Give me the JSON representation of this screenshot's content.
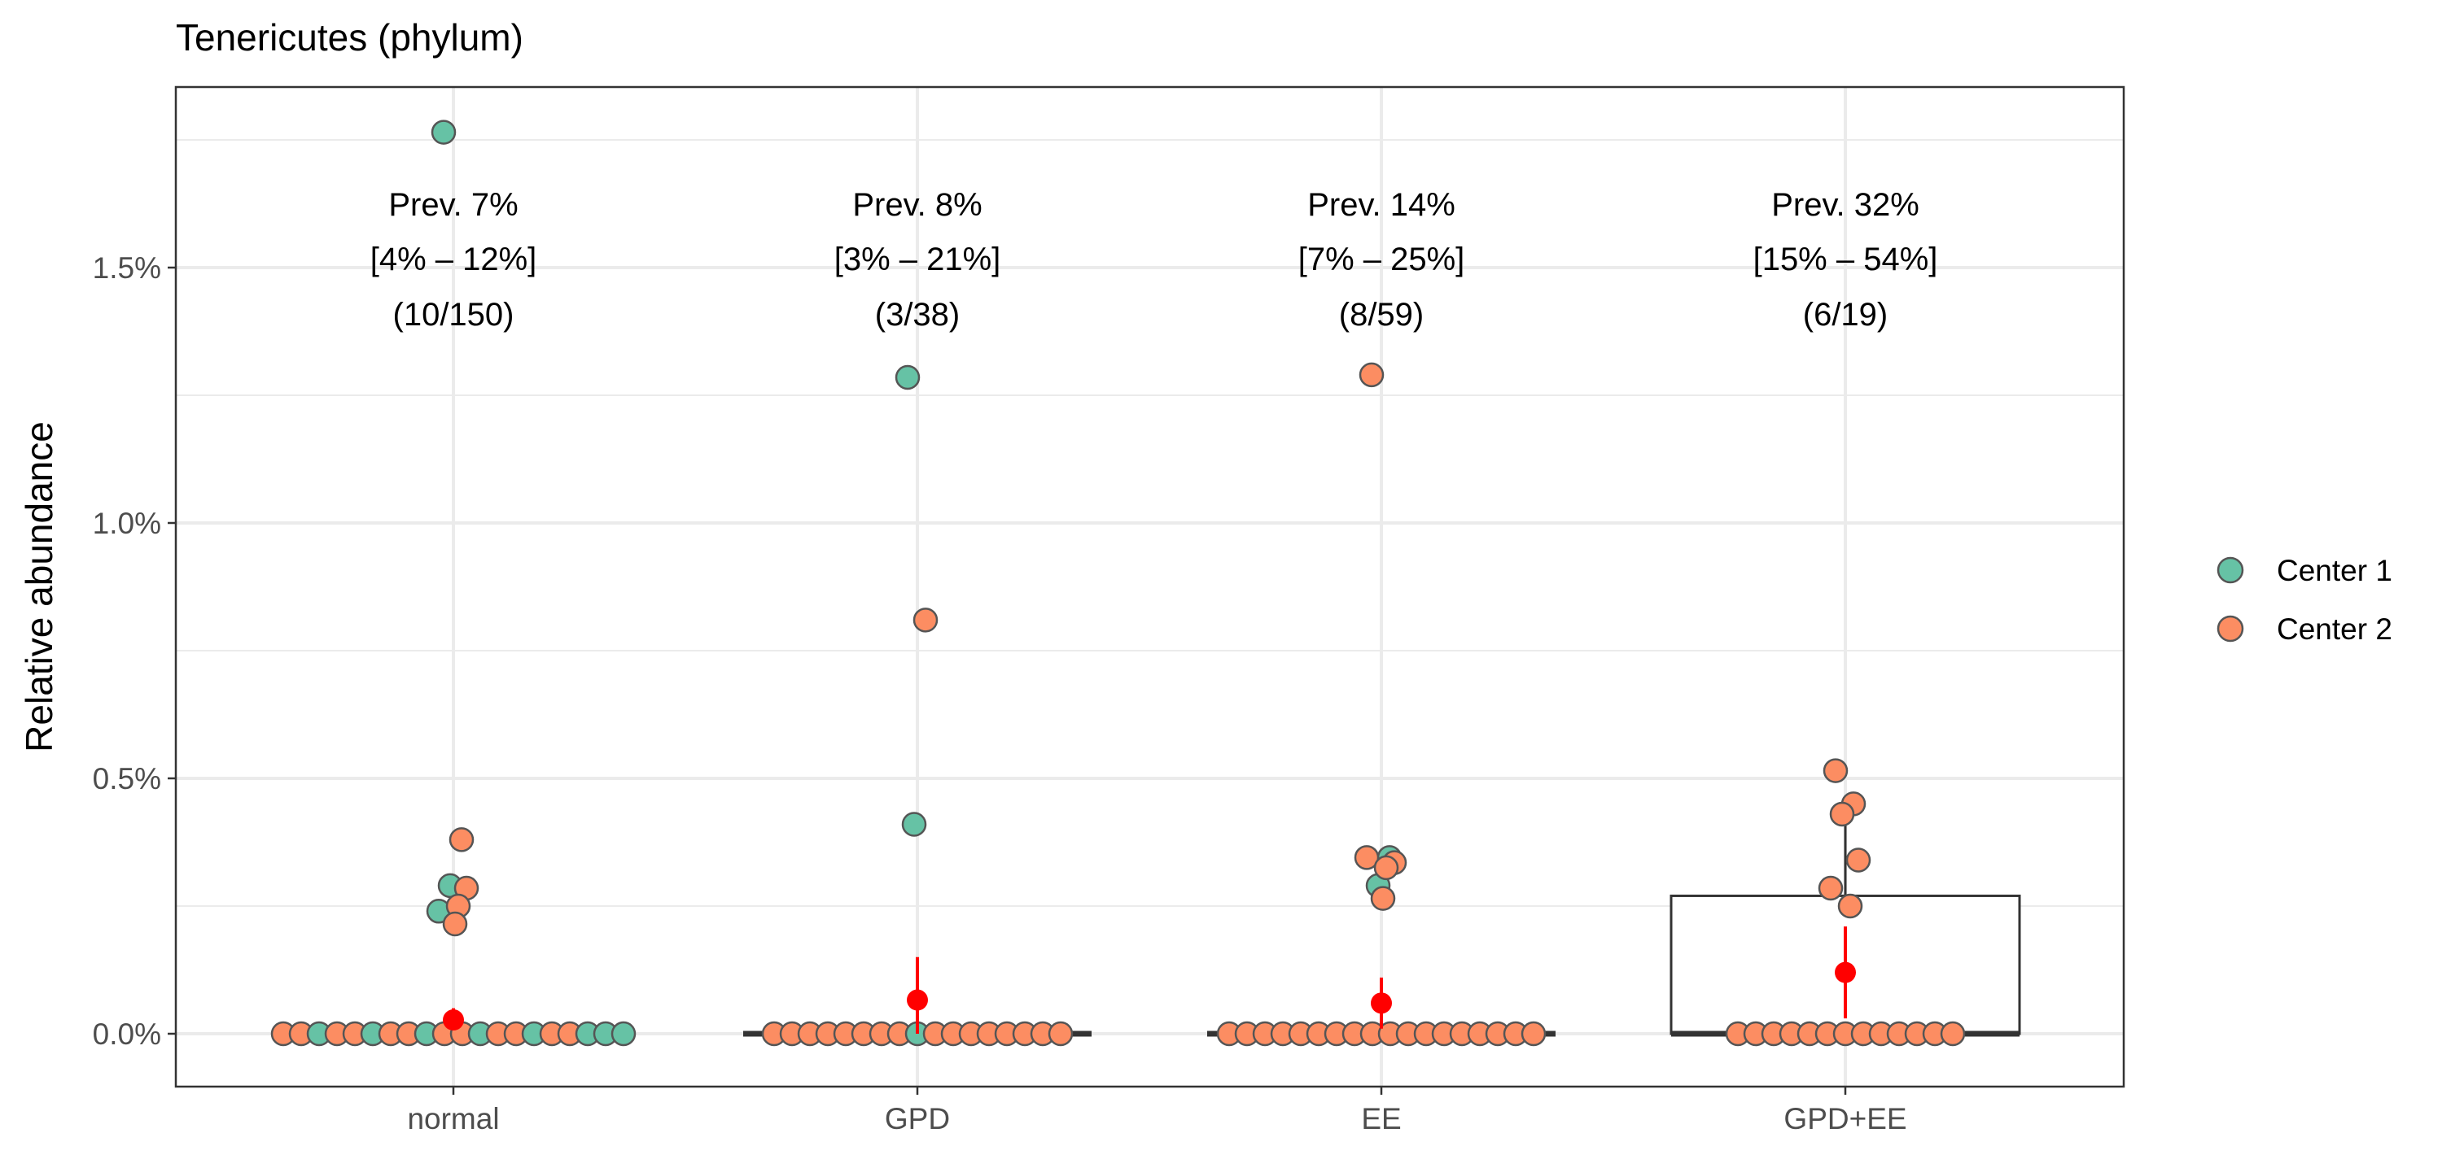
{
  "chart_data": {
    "type": "box",
    "title": "Tenericutes (phylum)",
    "xlabel": "",
    "ylabel": "Relative abundance",
    "categories": [
      "normal",
      "GPD",
      "EE",
      "GPD+EE"
    ],
    "y_ticks": [
      {
        "value": 0.0,
        "label": "0.0%"
      },
      {
        "value": 0.5,
        "label": "0.5%"
      },
      {
        "value": 1.0,
        "label": "1.0%"
      },
      {
        "value": 1.5,
        "label": "1.5%"
      }
    ],
    "ylim": [
      -0.1,
      1.85
    ],
    "grid": true,
    "legend_position": "right",
    "legend": [
      {
        "name": "Center 1",
        "color": "#66c2a5"
      },
      {
        "name": "Center 2",
        "color": "#fc8d62"
      }
    ],
    "mean_color": "#ff0000",
    "annotations": [
      {
        "category": "normal",
        "lines": [
          "Prev. 7%",
          "[4% – 12%]",
          "(10/150)"
        ]
      },
      {
        "category": "GPD",
        "lines": [
          "Prev. 8%",
          "[3% – 21%]",
          "(3/38)"
        ]
      },
      {
        "category": "EE",
        "lines": [
          "Prev. 14%",
          "[7% – 25%]",
          "(8/59)"
        ]
      },
      {
        "category": "GPD+EE",
        "lines": [
          "Prev. 32%",
          "[15% – 54%]",
          "(6/19)"
        ]
      }
    ],
    "boxes": [
      {
        "category": "normal",
        "q1": 0,
        "median": 0,
        "q3": 0,
        "whisker_low": 0,
        "whisker_high": 0
      },
      {
        "category": "GPD",
        "q1": 0,
        "median": 0,
        "q3": 0,
        "whisker_low": 0,
        "whisker_high": 0
      },
      {
        "category": "EE",
        "q1": 0,
        "median": 0,
        "q3": 0,
        "whisker_low": 0,
        "whisker_high": 0
      },
      {
        "category": "GPD+EE",
        "q1": 0,
        "median": 0,
        "q3": 0.27,
        "whisker_low": 0,
        "whisker_high": 0.43
      }
    ],
    "means": [
      {
        "category": "normal",
        "mean": 0.027,
        "lo": 0.01,
        "hi": 0.05
      },
      {
        "category": "GPD",
        "mean": 0.066,
        "lo": 0.0,
        "hi": 0.15
      },
      {
        "category": "EE",
        "mean": 0.06,
        "lo": 0.01,
        "hi": 0.11
      },
      {
        "category": "GPD+EE",
        "mean": 0.12,
        "lo": 0.03,
        "hi": 0.21
      }
    ],
    "points": [
      {
        "category": "normal",
        "y": 1.765,
        "center": "Center 1"
      },
      {
        "category": "normal",
        "y": 0.38,
        "center": "Center 2"
      },
      {
        "category": "normal",
        "y": 0.29,
        "center": "Center 1"
      },
      {
        "category": "normal",
        "y": 0.285,
        "center": "Center 2"
      },
      {
        "category": "normal",
        "y": 0.24,
        "center": "Center 1"
      },
      {
        "category": "normal",
        "y": 0.25,
        "center": "Center 2"
      },
      {
        "category": "normal",
        "y": 0.215,
        "center": "Center 2"
      },
      {
        "category": "GPD",
        "y": 1.285,
        "center": "Center 1"
      },
      {
        "category": "GPD",
        "y": 0.81,
        "center": "Center 2"
      },
      {
        "category": "GPD",
        "y": 0.41,
        "center": "Center 1"
      },
      {
        "category": "EE",
        "y": 1.29,
        "center": "Center 2"
      },
      {
        "category": "EE",
        "y": 0.345,
        "center": "Center 1"
      },
      {
        "category": "EE",
        "y": 0.29,
        "center": "Center 1"
      },
      {
        "category": "EE",
        "y": 0.335,
        "center": "Center 2"
      },
      {
        "category": "EE",
        "y": 0.345,
        "center": "Center 2"
      },
      {
        "category": "EE",
        "y": 0.325,
        "center": "Center 2"
      },
      {
        "category": "EE",
        "y": 0.265,
        "center": "Center 2"
      },
      {
        "category": "GPD+EE",
        "y": 0.515,
        "center": "Center 2"
      },
      {
        "category": "GPD+EE",
        "y": 0.45,
        "center": "Center 2"
      },
      {
        "category": "GPD+EE",
        "y": 0.43,
        "center": "Center 2"
      },
      {
        "category": "GPD+EE",
        "y": 0.34,
        "center": "Center 2"
      },
      {
        "category": "GPD+EE",
        "y": 0.285,
        "center": "Center 2"
      },
      {
        "category": "GPD+EE",
        "y": 0.25,
        "center": "Center 2"
      }
    ],
    "zero_points": [
      {
        "category": "normal",
        "center": "Center 2",
        "count": 12
      },
      {
        "category": "normal",
        "center": "Center 1",
        "count": 8
      },
      {
        "category": "GPD",
        "center": "Center 2",
        "count": 16
      },
      {
        "category": "GPD",
        "center": "Center 1",
        "count": 1
      },
      {
        "category": "EE",
        "center": "Center 2",
        "count": 18
      },
      {
        "category": "GPD+EE",
        "center": "Center 2",
        "count": 13
      }
    ]
  }
}
